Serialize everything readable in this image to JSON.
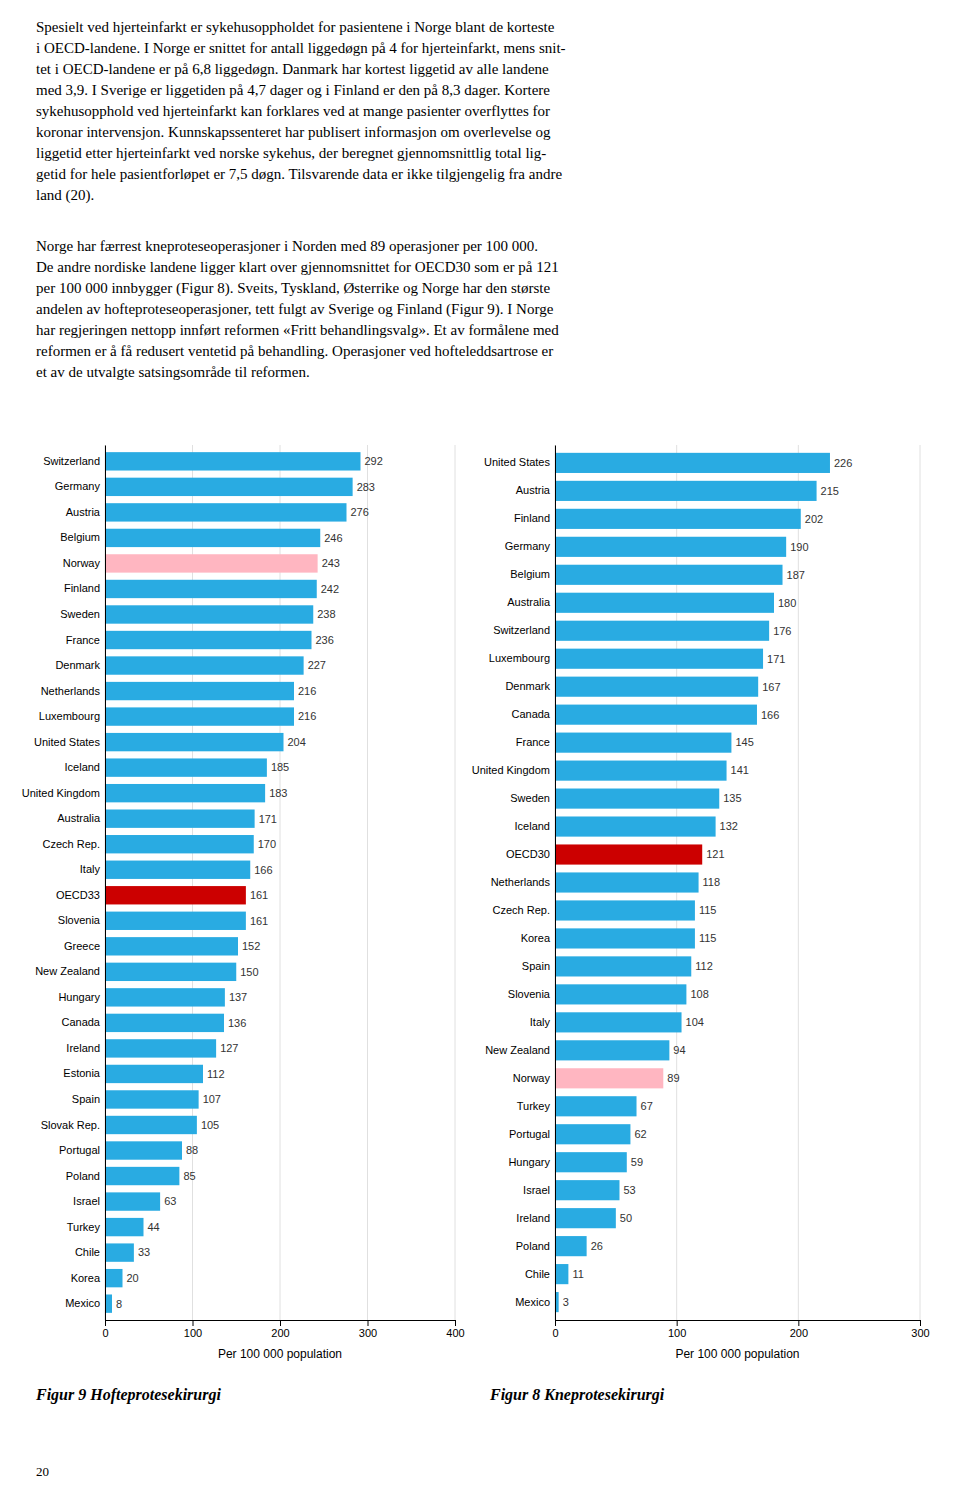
{
  "paragraphs": [
    "Spesielt ved hjerteinfarkt er sykehusoppholdet for pasientene i Norge blant de korteste\ni OECD-landene. I Norge er snittet for antall liggedøgn på 4 for hjerteinfarkt, mens snit-\ntet i OECD-landene er på 6,8 liggedøgn. Danmark har kortest liggetid av alle landene\nmed 3,9. I Sverige er liggetiden på 4,7 dager og i Finland er den på 8,3 dager. Kortere\nsykehusopphold ved hjerteinfarkt kan forklares ved at mange pasienter overflyttes for\nkoronar intervensjon. Kunnskapssenteret har publisert informasjon om overlevelse og\nliggetid etter hjerteinfarkt ved norske sykehus, der beregnet gjennomsnittlig total lig-\ngetid for hele pasientforløpet er 7,5 døgn. Tilsvarende data er ikke tilgjengelig fra andre\nland (20).",
    "Norge har færrest kneproteseoperasjoner i Norden med 89 operasjoner per 100 000.\nDe andre nordiske landene ligger klart over gjennomsnittet for OECD30 som er på 121\nper 100 000 innbygger (Figur 8). Sveits, Tyskland, Østerrike og Norge har den største\nandelen av hofteproteseoperasjoner, tett fulgt av Sverige og Finland (Figur 9). I Norge\nhar regjeringen nettopp innført reformen «Fritt behandlingsvalg». Et av formålene med\nreformen er å få redusert ventetid på behandling. Operasjoner ved hofteleddsartrose er\net av de utvalgte satsingsområde til reformen."
  ],
  "page_number": "20",
  "chart_data": [
    {
      "type": "bar",
      "orientation": "horizontal",
      "title": "Figur 9 Hofteprotesekirurgi",
      "xlabel": "Per 100 000 population",
      "categories": [
        "Switzerland",
        "Germany",
        "Austria",
        "Belgium",
        "Norway",
        "Finland",
        "Sweden",
        "France",
        "Denmark",
        "Netherlands",
        "Luxembourg",
        "United States",
        "Iceland",
        "United Kingdom",
        "Australia",
        "Czech Rep.",
        "Italy",
        "OECD33",
        "Slovenia",
        "Greece",
        "New Zealand",
        "Hungary",
        "Canada",
        "Ireland",
        "Estonia",
        "Spain",
        "Slovak Rep.",
        "Portugal",
        "Poland",
        "Israel",
        "Turkey",
        "Chile",
        "Korea",
        "Mexico"
      ],
      "values": [
        292,
        283,
        276,
        246,
        243,
        242,
        238,
        236,
        227,
        216,
        216,
        204,
        185,
        183,
        171,
        170,
        166,
        161,
        161,
        152,
        150,
        137,
        136,
        127,
        112,
        107,
        105,
        88,
        85,
        63,
        44,
        33,
        20,
        8
      ],
      "colors": [
        "#29ABE2",
        "#29ABE2",
        "#29ABE2",
        "#29ABE2",
        "#FFB6C1",
        "#29ABE2",
        "#29ABE2",
        "#29ABE2",
        "#29ABE2",
        "#29ABE2",
        "#29ABE2",
        "#29ABE2",
        "#29ABE2",
        "#29ABE2",
        "#29ABE2",
        "#29ABE2",
        "#29ABE2",
        "#CC0000",
        "#29ABE2",
        "#29ABE2",
        "#29ABE2",
        "#29ABE2",
        "#29ABE2",
        "#29ABE2",
        "#29ABE2",
        "#29ABE2",
        "#29ABE2",
        "#29ABE2",
        "#29ABE2",
        "#29ABE2",
        "#29ABE2",
        "#29ABE2",
        "#29ABE2",
        "#29ABE2"
      ],
      "xlim": [
        0,
        400
      ],
      "xticks": [
        0,
        100,
        200,
        300,
        400
      ],
      "grid": true,
      "data_labels": true
    },
    {
      "type": "bar",
      "orientation": "horizontal",
      "title": "Figur 8 Kneprotesekirurgi",
      "xlabel": "Per 100 000 population",
      "categories": [
        "United States",
        "Austria",
        "Finland",
        "Germany",
        "Belgium",
        "Australia",
        "Switzerland",
        "Luxembourg",
        "Denmark",
        "Canada",
        "France",
        "United Kingdom",
        "Sweden",
        "Iceland",
        "OECD30",
        "Netherlands",
        "Czech Rep.",
        "Korea",
        "Spain",
        "Slovenia",
        "Italy",
        "New Zealand",
        "Norway",
        "Turkey",
        "Portugal",
        "Hungary",
        "Israel",
        "Ireland",
        "Poland",
        "Chile",
        "Mexico"
      ],
      "values": [
        226,
        215,
        202,
        190,
        187,
        180,
        176,
        171,
        167,
        166,
        145,
        141,
        135,
        132,
        121,
        118,
        115,
        115,
        112,
        108,
        104,
        94,
        89,
        67,
        62,
        59,
        53,
        50,
        26,
        11,
        3
      ],
      "colors": [
        "#29ABE2",
        "#29ABE2",
        "#29ABE2",
        "#29ABE2",
        "#29ABE2",
        "#29ABE2",
        "#29ABE2",
        "#29ABE2",
        "#29ABE2",
        "#29ABE2",
        "#29ABE2",
        "#29ABE2",
        "#29ABE2",
        "#29ABE2",
        "#CC0000",
        "#29ABE2",
        "#29ABE2",
        "#29ABE2",
        "#29ABE2",
        "#29ABE2",
        "#29ABE2",
        "#29ABE2",
        "#FFB6C1",
        "#29ABE2",
        "#29ABE2",
        "#29ABE2",
        "#29ABE2",
        "#29ABE2",
        "#29ABE2",
        "#29ABE2",
        "#29ABE2"
      ],
      "xlim": [
        0,
        300
      ],
      "xticks": [
        0,
        100,
        200,
        300
      ],
      "grid": true,
      "data_labels": true
    }
  ]
}
